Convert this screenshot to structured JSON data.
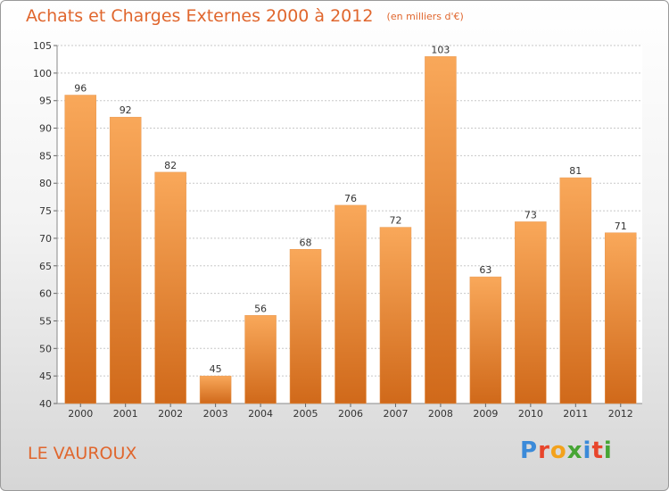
{
  "header": {
    "title": "Achats et Charges Externes 2000 à 2012",
    "unit": "(en milliers d'€)"
  },
  "location": "LE VAUROUX",
  "logo": {
    "text": "Proxiti",
    "letter_colors": [
      "#3b8ad9",
      "#e8452b",
      "#f3a21c",
      "#46a534",
      "#3b8ad9",
      "#e8452b",
      "#46a534"
    ]
  },
  "colors": {
    "bar_top": "#f9a85a",
    "bar_bottom": "#d0691a",
    "title": "#e0662d",
    "grid": "#c8c8c8"
  },
  "chart_data": {
    "type": "bar",
    "title": "Achats et Charges Externes 2000 à 2012",
    "subtitle": "(en milliers d'€)",
    "xlabel": "",
    "ylabel": "",
    "categories": [
      "2000",
      "2001",
      "2002",
      "2003",
      "2004",
      "2005",
      "2006",
      "2007",
      "2008",
      "2009",
      "2010",
      "2011",
      "2012"
    ],
    "values": [
      96,
      92,
      82,
      45,
      56,
      68,
      76,
      72,
      103,
      63,
      73,
      81,
      71
    ],
    "ylim": [
      40,
      105
    ],
    "yticks": [
      40,
      45,
      50,
      55,
      60,
      65,
      70,
      75,
      80,
      85,
      90,
      95,
      100,
      105
    ],
    "grid": true,
    "data_labels": true
  }
}
